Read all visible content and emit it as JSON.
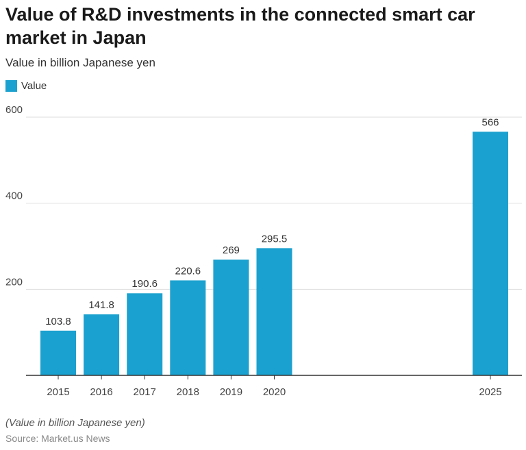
{
  "header": {
    "title": "Value of R&D investments in the connected smart car market in Japan",
    "subtitle": "Value in billion Japanese yen"
  },
  "legend": {
    "label": "Value"
  },
  "colors": {
    "bar": "#1ba1cf",
    "grid": "#dddddd",
    "axis": "#333333"
  },
  "footer": {
    "note": "(Value in billion Japanese yen)",
    "source": "Source: Market.us News"
  },
  "chart_data": {
    "type": "bar",
    "categories": [
      "2015",
      "2016",
      "2017",
      "2018",
      "2019",
      "2020",
      "2025"
    ],
    "values": [
      103.8,
      141.8,
      190.6,
      220.6,
      269,
      295.5,
      566
    ],
    "value_labels": [
      "103.8",
      "141.8",
      "190.6",
      "220.6",
      "269",
      "295.5",
      "566"
    ],
    "yticks": [
      200,
      400,
      600
    ],
    "ylim": [
      0,
      600
    ],
    "xaxis": "time",
    "grid": true,
    "legend_position": "top-left",
    "title": "Value of R&D investments in the connected smart car market in Japan",
    "ylabel": "Value in billion Japanese yen",
    "xlabel": ""
  }
}
